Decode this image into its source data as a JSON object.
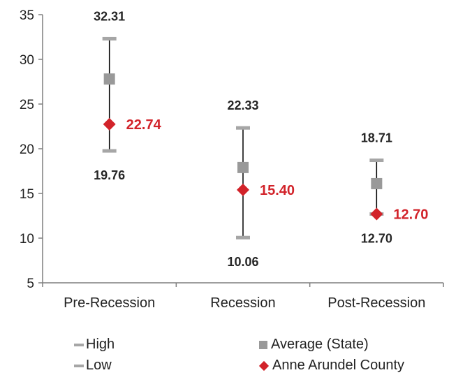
{
  "colors": {
    "high_low": "#a6a6a6",
    "average": "#999999",
    "county": "#d2232a",
    "axis": "#7f7f7f",
    "stem": "#000000"
  },
  "chart_data": {
    "type": "scatter",
    "categories": [
      "Pre-Recession",
      "Recession",
      "Post-Recession"
    ],
    "ylim": [
      5,
      35
    ],
    "yticks": [
      "5",
      "10",
      "15",
      "20",
      "25",
      "30",
      "35"
    ],
    "series": [
      {
        "name": "High",
        "values": [
          32.31,
          22.33,
          18.71
        ],
        "labels": [
          "32.31",
          "22.33",
          "18.71"
        ]
      },
      {
        "name": "Low",
        "values": [
          19.76,
          10.06,
          12.7
        ],
        "labels": [
          "19.76",
          "10.06",
          "12.70"
        ]
      },
      {
        "name": "Average (State)",
        "values": [
          27.8,
          17.9,
          16.1
        ]
      },
      {
        "name": "Anne Arundel County",
        "values": [
          22.74,
          15.4,
          12.7
        ],
        "labels": [
          "22.74",
          "15.40",
          "12.70"
        ]
      }
    ],
    "legend_position": "bottom",
    "grid": false
  },
  "legend": {
    "high": "High",
    "low": "Low",
    "average": "Average (State)",
    "county": "Anne Arundel County"
  }
}
